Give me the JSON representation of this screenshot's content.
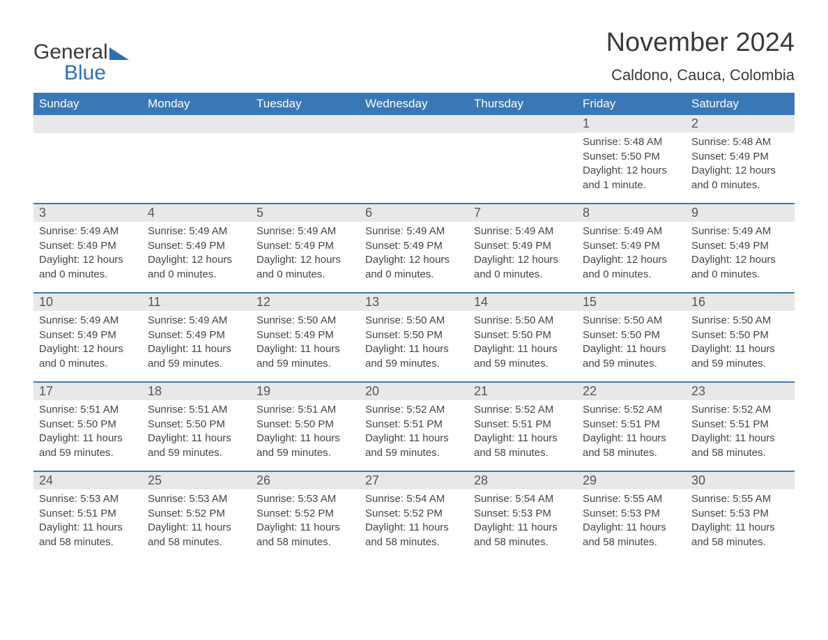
{
  "logo": {
    "line1": "General",
    "line2": "Blue"
  },
  "title": "November 2024",
  "location": "Caldono, Cauca, Colombia",
  "colors": {
    "header_bg": "#3a77b5",
    "header_text": "#ffffff",
    "daybar_bg": "#e8e8e8",
    "week_divider": "#3a77b5",
    "body_text": "#444444",
    "title_text": "#3a3a3a",
    "logo_blue": "#2d6fb3",
    "background": "#ffffff"
  },
  "typography": {
    "title_fontsize": 38,
    "location_fontsize": 22,
    "weekday_fontsize": 17,
    "daynum_fontsize": 18,
    "body_fontsize": 15
  },
  "weekdays": [
    "Sunday",
    "Monday",
    "Tuesday",
    "Wednesday",
    "Thursday",
    "Friday",
    "Saturday"
  ],
  "labels": {
    "sunrise": "Sunrise:",
    "sunset": "Sunset:",
    "daylight": "Daylight:"
  },
  "weeks": [
    [
      {
        "blank": true
      },
      {
        "blank": true
      },
      {
        "blank": true
      },
      {
        "blank": true
      },
      {
        "blank": true
      },
      {
        "day": "1",
        "sunrise": "5:48 AM",
        "sunset": "5:50 PM",
        "daylight": "12 hours and 1 minute."
      },
      {
        "day": "2",
        "sunrise": "5:48 AM",
        "sunset": "5:49 PM",
        "daylight": "12 hours and 0 minutes."
      }
    ],
    [
      {
        "day": "3",
        "sunrise": "5:49 AM",
        "sunset": "5:49 PM",
        "daylight": "12 hours and 0 minutes."
      },
      {
        "day": "4",
        "sunrise": "5:49 AM",
        "sunset": "5:49 PM",
        "daylight": "12 hours and 0 minutes."
      },
      {
        "day": "5",
        "sunrise": "5:49 AM",
        "sunset": "5:49 PM",
        "daylight": "12 hours and 0 minutes."
      },
      {
        "day": "6",
        "sunrise": "5:49 AM",
        "sunset": "5:49 PM",
        "daylight": "12 hours and 0 minutes."
      },
      {
        "day": "7",
        "sunrise": "5:49 AM",
        "sunset": "5:49 PM",
        "daylight": "12 hours and 0 minutes."
      },
      {
        "day": "8",
        "sunrise": "5:49 AM",
        "sunset": "5:49 PM",
        "daylight": "12 hours and 0 minutes."
      },
      {
        "day": "9",
        "sunrise": "5:49 AM",
        "sunset": "5:49 PM",
        "daylight": "12 hours and 0 minutes."
      }
    ],
    [
      {
        "day": "10",
        "sunrise": "5:49 AM",
        "sunset": "5:49 PM",
        "daylight": "12 hours and 0 minutes."
      },
      {
        "day": "11",
        "sunrise": "5:49 AM",
        "sunset": "5:49 PM",
        "daylight": "11 hours and 59 minutes."
      },
      {
        "day": "12",
        "sunrise": "5:50 AM",
        "sunset": "5:49 PM",
        "daylight": "11 hours and 59 minutes."
      },
      {
        "day": "13",
        "sunrise": "5:50 AM",
        "sunset": "5:50 PM",
        "daylight": "11 hours and 59 minutes."
      },
      {
        "day": "14",
        "sunrise": "5:50 AM",
        "sunset": "5:50 PM",
        "daylight": "11 hours and 59 minutes."
      },
      {
        "day": "15",
        "sunrise": "5:50 AM",
        "sunset": "5:50 PM",
        "daylight": "11 hours and 59 minutes."
      },
      {
        "day": "16",
        "sunrise": "5:50 AM",
        "sunset": "5:50 PM",
        "daylight": "11 hours and 59 minutes."
      }
    ],
    [
      {
        "day": "17",
        "sunrise": "5:51 AM",
        "sunset": "5:50 PM",
        "daylight": "11 hours and 59 minutes."
      },
      {
        "day": "18",
        "sunrise": "5:51 AM",
        "sunset": "5:50 PM",
        "daylight": "11 hours and 59 minutes."
      },
      {
        "day": "19",
        "sunrise": "5:51 AM",
        "sunset": "5:50 PM",
        "daylight": "11 hours and 59 minutes."
      },
      {
        "day": "20",
        "sunrise": "5:52 AM",
        "sunset": "5:51 PM",
        "daylight": "11 hours and 59 minutes."
      },
      {
        "day": "21",
        "sunrise": "5:52 AM",
        "sunset": "5:51 PM",
        "daylight": "11 hours and 58 minutes."
      },
      {
        "day": "22",
        "sunrise": "5:52 AM",
        "sunset": "5:51 PM",
        "daylight": "11 hours and 58 minutes."
      },
      {
        "day": "23",
        "sunrise": "5:52 AM",
        "sunset": "5:51 PM",
        "daylight": "11 hours and 58 minutes."
      }
    ],
    [
      {
        "day": "24",
        "sunrise": "5:53 AM",
        "sunset": "5:51 PM",
        "daylight": "11 hours and 58 minutes."
      },
      {
        "day": "25",
        "sunrise": "5:53 AM",
        "sunset": "5:52 PM",
        "daylight": "11 hours and 58 minutes."
      },
      {
        "day": "26",
        "sunrise": "5:53 AM",
        "sunset": "5:52 PM",
        "daylight": "11 hours and 58 minutes."
      },
      {
        "day": "27",
        "sunrise": "5:54 AM",
        "sunset": "5:52 PM",
        "daylight": "11 hours and 58 minutes."
      },
      {
        "day": "28",
        "sunrise": "5:54 AM",
        "sunset": "5:53 PM",
        "daylight": "11 hours and 58 minutes."
      },
      {
        "day": "29",
        "sunrise": "5:55 AM",
        "sunset": "5:53 PM",
        "daylight": "11 hours and 58 minutes."
      },
      {
        "day": "30",
        "sunrise": "5:55 AM",
        "sunset": "5:53 PM",
        "daylight": "11 hours and 58 minutes."
      }
    ]
  ]
}
